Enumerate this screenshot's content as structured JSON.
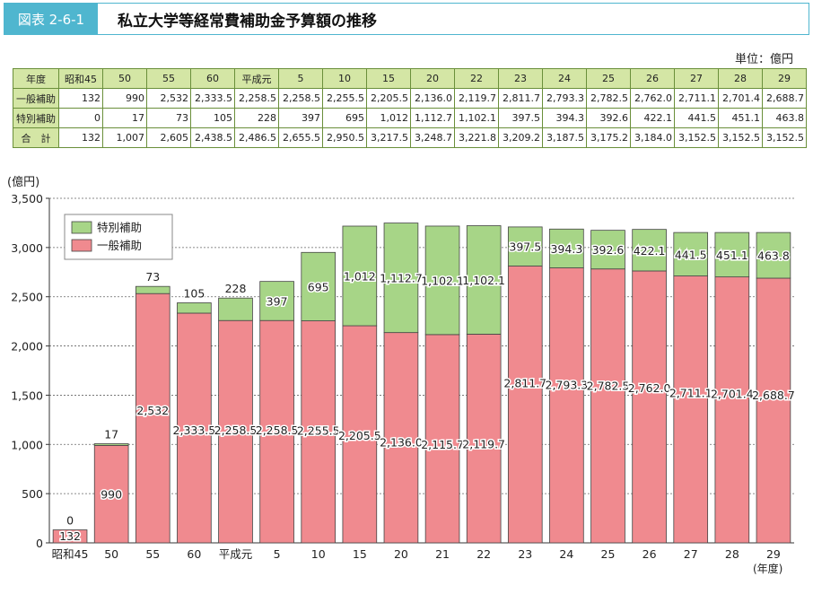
{
  "header": {
    "figure_label": "図表 2-6-1",
    "title": "私立大学等経常費補助金予算額の推移"
  },
  "unit_label": "単位：億円",
  "table": {
    "corner": "年度",
    "columns": [
      "昭和45",
      "50",
      "55",
      "60",
      "平成元",
      "5",
      "10",
      "15",
      "20",
      "22",
      "23",
      "24",
      "25",
      "26",
      "27",
      "28",
      "29"
    ],
    "rows": [
      {
        "label": "一般補助",
        "values": [
          "132",
          "990",
          "2,532",
          "2,333.5",
          "2,258.5",
          "2,258.5",
          "2,255.5",
          "2,205.5",
          "2,136.0",
          "2,119.7",
          "2,811.7",
          "2,793.3",
          "2,782.5",
          "2,762.0",
          "2,711.1",
          "2,701.4",
          "2,688.7"
        ]
      },
      {
        "label": "特別補助",
        "values": [
          "0",
          "17",
          "73",
          "105",
          "228",
          "397",
          "695",
          "1,012",
          "1,112.7",
          "1,102.1",
          "397.5",
          "394.3",
          "392.6",
          "422.1",
          "441.5",
          "451.1",
          "463.8"
        ]
      },
      {
        "label": "合　計",
        "values": [
          "132",
          "1,007",
          "2,605",
          "2,438.5",
          "2,486.5",
          "2,655.5",
          "2,950.5",
          "3,217.5",
          "3,248.7",
          "3,221.8",
          "3,209.2",
          "3,187.5",
          "3,175.2",
          "3,184.0",
          "3,152.5",
          "3,152.5",
          "3,152.5"
        ]
      }
    ]
  },
  "chart_data": {
    "type": "bar",
    "stacked": true,
    "ylabel": "(億円)",
    "xlabel": "(年度)",
    "ylim": [
      0,
      3500
    ],
    "yticks": [
      "0",
      "500",
      "1,000",
      "1,500",
      "2,000",
      "2,500",
      "3,000",
      "3,500"
    ],
    "ytick_values": [
      0,
      500,
      1000,
      1500,
      2000,
      2500,
      3000,
      3500
    ],
    "grid": true,
    "legend_position": "top-left",
    "categories": [
      "昭和45",
      "50",
      "55",
      "60",
      "平成元",
      "5",
      "10",
      "15",
      "20",
      "21",
      "22",
      "23",
      "24",
      "25",
      "26",
      "27",
      "28",
      "29"
    ],
    "series": [
      {
        "name": "一般補助",
        "color": "#f08a8f",
        "values": [
          132,
          990,
          2532,
          2333.5,
          2258.5,
          2258.5,
          2255.5,
          2205.5,
          2136.0,
          2115.7,
          2119.7,
          2811.7,
          2793.3,
          2782.5,
          2762.0,
          2711.1,
          2701.4,
          2688.7
        ],
        "labels": [
          "132",
          "990",
          "2,532",
          "2,333.5",
          "2,258.5",
          "2,258.5",
          "2,255.5",
          "2,205.5",
          "2,136.0",
          "2,115.7",
          "2,119.7",
          "2,811.7",
          "2,793.3",
          "2,782.5",
          "2,762.0",
          "2,711.1",
          "2,701.4",
          "2,688.7"
        ]
      },
      {
        "name": "特別補助",
        "color": "#a7d587",
        "values": [
          0,
          17,
          73,
          105,
          228,
          397,
          695,
          1012,
          1112.7,
          1102.1,
          1102.1,
          397.5,
          394.3,
          392.6,
          422.1,
          441.5,
          451.1,
          463.8
        ],
        "labels": [
          "0",
          "17",
          "73",
          "105",
          "228",
          "397",
          "695",
          "1,012",
          "1,112.7",
          "1,102.1",
          "1,102.1",
          "397.5",
          "394.3",
          "392.6",
          "422.1",
          "441.5",
          "451.1",
          "463.8"
        ]
      }
    ]
  }
}
